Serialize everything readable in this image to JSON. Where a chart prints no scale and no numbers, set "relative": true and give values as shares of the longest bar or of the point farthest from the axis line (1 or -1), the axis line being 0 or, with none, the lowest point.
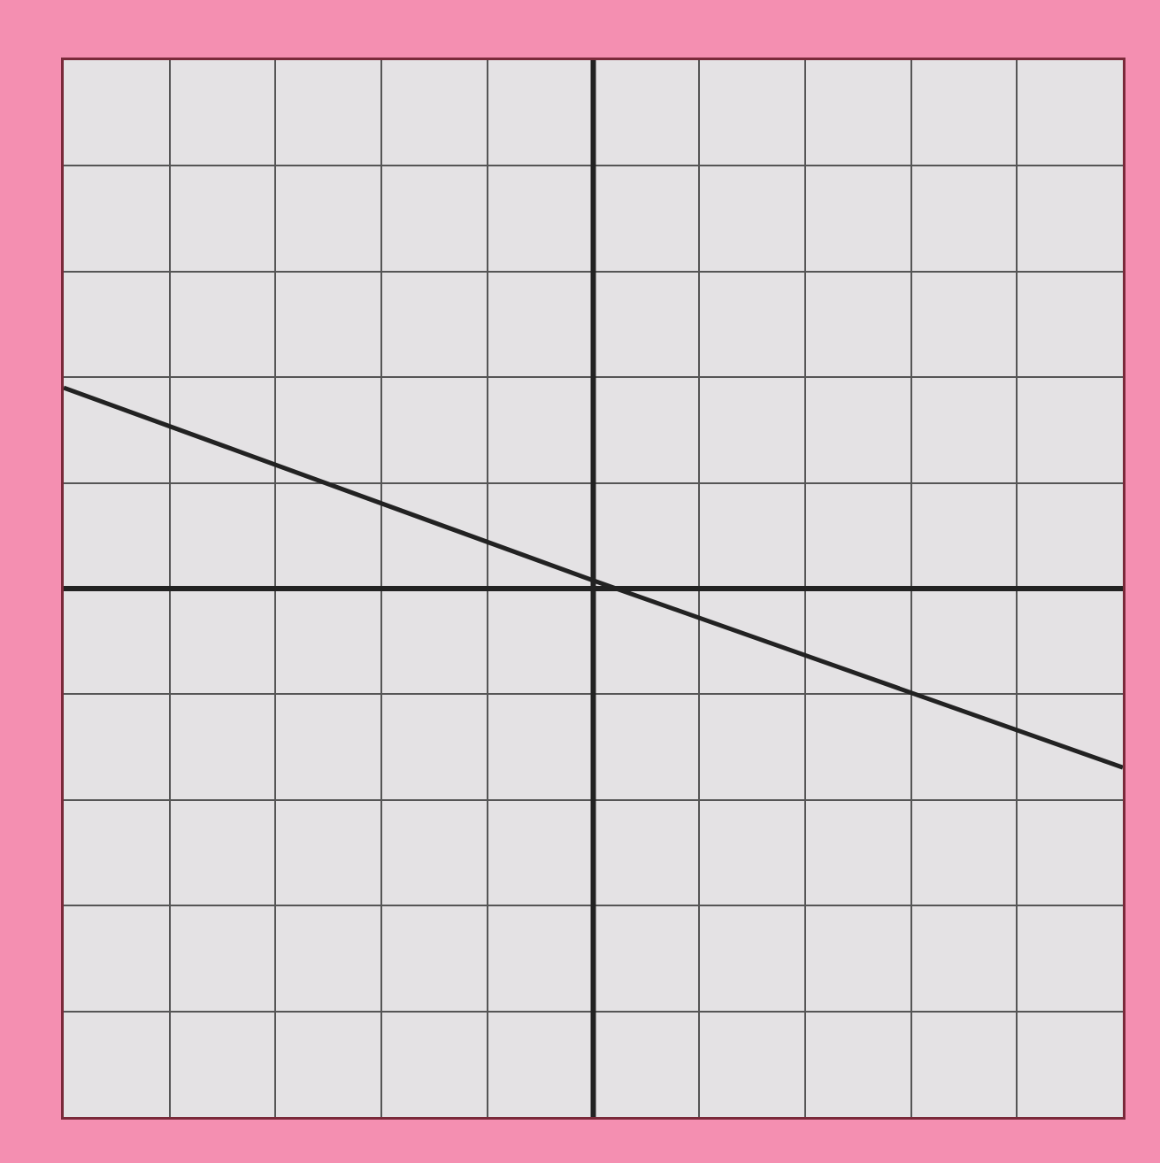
{
  "chart_data": {
    "type": "line",
    "relative": true,
    "categories": [
      null,
      null,
      null
    ],
    "series": [
      {
        "color": "#222222",
        "values": [
          1,
          0.04,
          -0.89
        ]
      }
    ],
    "grid": true,
    "marker": "none",
    "line_style": "solid"
  }
}
